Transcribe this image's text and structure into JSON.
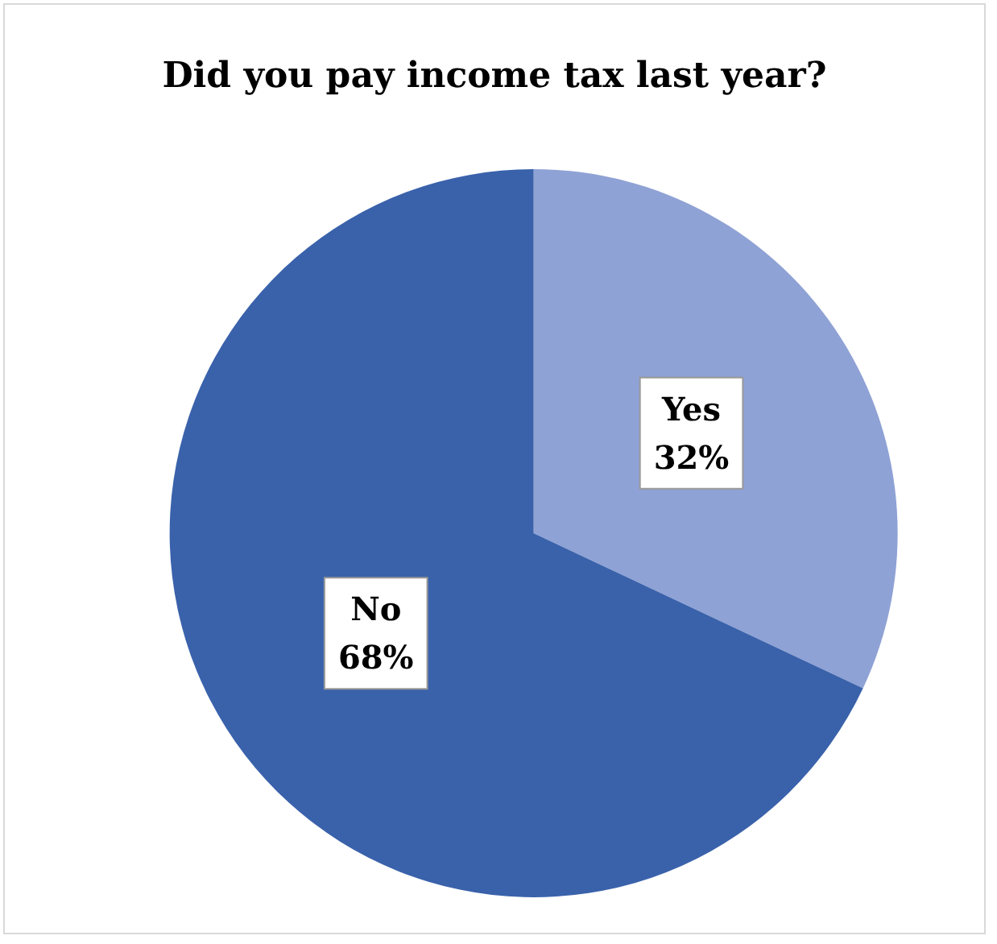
{
  "chart_data": {
    "type": "pie",
    "title": "Did you pay income tax last year?",
    "categories": [
      "Yes",
      "No"
    ],
    "values": [
      32,
      68
    ],
    "colors": [
      "#8fa2d5",
      "#3a62ab"
    ],
    "value_labels": [
      "32%",
      "68%"
    ],
    "legend": false
  }
}
